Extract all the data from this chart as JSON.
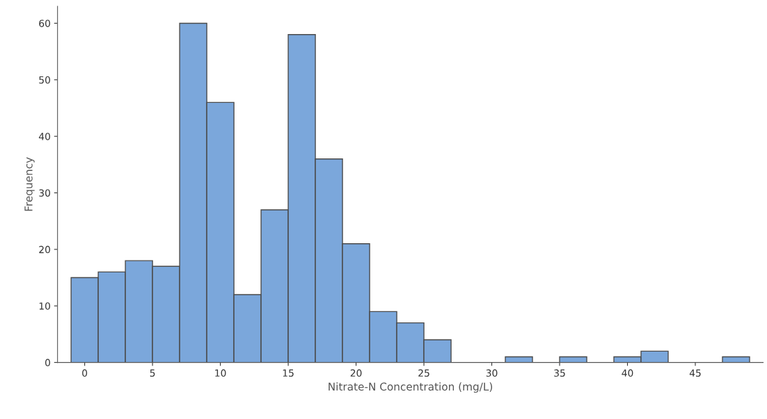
{
  "chart_data": {
    "type": "histogram",
    "xlabel": "Nitrate-N Concentration (mg/L)",
    "ylabel": "Frequency",
    "bins": [
      -1,
      1,
      3,
      5,
      7,
      9,
      11,
      13,
      15,
      17,
      19,
      21,
      23,
      25,
      27,
      29,
      31,
      33,
      35,
      37,
      39,
      41,
      43,
      45,
      47,
      49
    ],
    "values": [
      15,
      16,
      18,
      17,
      60,
      46,
      12,
      27,
      58,
      36,
      21,
      9,
      7,
      4,
      0,
      0,
      1,
      0,
      1,
      0,
      1,
      2,
      0,
      0,
      1
    ],
    "color": "#7ba7db",
    "xlim": [
      -2,
      50
    ],
    "xticks": [
      0,
      5,
      10,
      15,
      20,
      25,
      30,
      35,
      40,
      45
    ],
    "ylim": [
      0,
      63
    ],
    "yticks": [
      0,
      10,
      20,
      30,
      40,
      50,
      60
    ],
    "grid": false
  }
}
